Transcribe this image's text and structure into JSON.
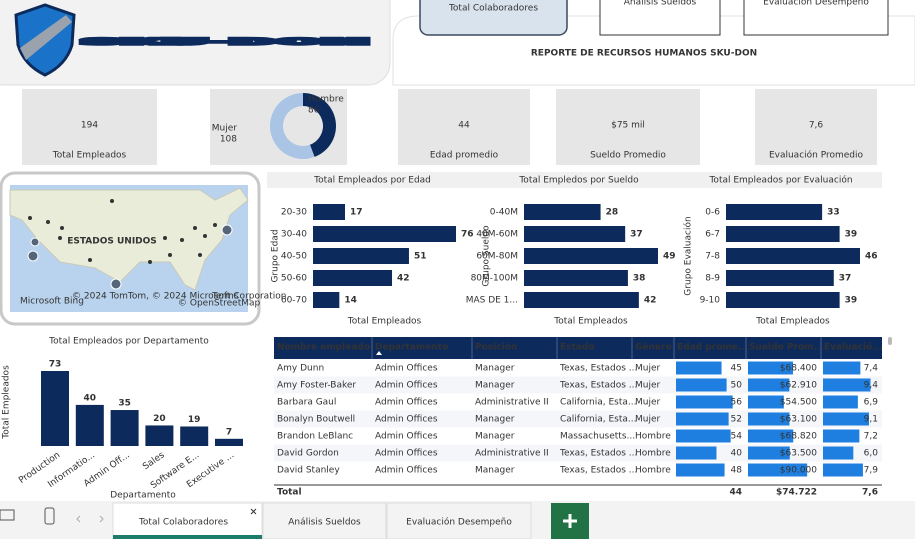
{
  "header": {
    "logo": "SKU-DON",
    "title": "REPORTE DE RECURSOS HUMANOS SKU-DON",
    "buttons": [
      "Total Colaboradores",
      "Análisis Sueldos",
      "Evaluación Desempeño"
    ]
  },
  "kpis": [
    {
      "value": 194,
      "label": "Total Empleados"
    },
    {
      "value": 44,
      "label": "Edad promedio"
    },
    {
      "value": "$75 mil",
      "label": "Sueldo Promedio"
    },
    {
      "value": "7,6",
      "label": "Evaluación Promedio"
    }
  ],
  "map": {
    "label": "ESTADOS UNIDOS",
    "attribution": "© 2024 TomTom, © 2024 Microsoft Corporation,",
    "terms": "Terms",
    "osm": "© OpenStreetMap",
    "brand": "Microsoft Bing"
  },
  "chart_data": [
    {
      "type": "donut",
      "categories": [
        "Hombre",
        "Mujer"
      ],
      "values": [
        86,
        108
      ],
      "colors": [
        "#0d2a5c",
        "#a9c4e4"
      ]
    },
    {
      "type": "hbar",
      "title": "Total Empleados por Edad",
      "categories": [
        "20-30",
        "30-40",
        "40-50",
        "50-60",
        "60-70"
      ],
      "values": [
        17,
        76,
        51,
        42,
        14
      ],
      "y_label": "Grupo Edad",
      "x_label": "Total Empleados",
      "color": "#0d2a5c"
    },
    {
      "type": "hbar",
      "title": "Total Empledos por Sueldo",
      "categories": [
        "0-40M",
        "40M-60M",
        "60M-80M",
        "80M-100M",
        "MAS DE 1..."
      ],
      "values": [
        28,
        37,
        49,
        38,
        42
      ],
      "y_label": "Grupo Sueldo",
      "x_label": "Total Empleados",
      "color": "#0d2a5c"
    },
    {
      "type": "hbar",
      "title": "Total Empleados por Evaluación",
      "categories": [
        "0-6",
        "6-7",
        "7-8",
        "8-9",
        "9-10"
      ],
      "values": [
        33,
        39,
        46,
        37,
        39
      ],
      "y_label": "Grupo Evaluación",
      "x_label": "Total Empleados",
      "color": "#0d2a5c"
    },
    {
      "type": "bar",
      "title": "Total Empleados por Departamento",
      "categories": [
        "Production",
        "Informatio...",
        "Admin Off...",
        "Sales",
        "Software E...",
        "Executive ..."
      ],
      "values": [
        73,
        40,
        35,
        20,
        19,
        7
      ],
      "y_label": "Total Empleados",
      "x_label": "Departamento",
      "color": "#0d2a5c"
    }
  ],
  "table": {
    "columns": [
      "Nombre empleado",
      "Departamento",
      "Posición",
      "Estado",
      "Género",
      "Edad prome...",
      "Sueldo Prom...",
      "Evaluació..."
    ],
    "rows": [
      [
        "Amy Dunn",
        "Admin Offices",
        "Manager",
        "Texas, Estados ...",
        "Mujer",
        45,
        {
          "value": 68400,
          "label": "$68.400"
        },
        {
          "value": 7.4,
          "label": "7,4"
        }
      ],
      [
        "Amy Foster-Baker",
        "Admin Offices",
        "Manager",
        "Texas, Estados ...",
        "Mujer",
        50,
        {
          "value": 62910,
          "label": "$62.910"
        },
        {
          "value": 9.4,
          "label": "9,4"
        }
      ],
      [
        "Barbara Gaul",
        "Admin Offices",
        "Administrative II",
        "California, Esta...",
        "Mujer",
        56,
        {
          "value": 54500,
          "label": "$54.500"
        },
        {
          "value": 6.9,
          "label": "6,9"
        }
      ],
      [
        "Bonalyn Boutwell",
        "Admin Offices",
        "Manager",
        "California, Esta...",
        "Mujer",
        52,
        {
          "value": 63100,
          "label": "$63.100"
        },
        {
          "value": 9.1,
          "label": "9,1"
        }
      ],
      [
        "Brandon LeBlanc",
        "Admin Offices",
        "Manager",
        "Massachusetts...",
        "Hombre",
        54,
        {
          "value": 68820,
          "label": "$68.820"
        },
        {
          "value": 7.2,
          "label": "7,2"
        }
      ],
      [
        "David Gordon",
        "Admin Offices",
        "Administrative II",
        "Texas, Estados ...",
        "Hombre",
        40,
        {
          "value": 63500,
          "label": "$63.500"
        },
        {
          "value": 6.0,
          "label": "6,0"
        }
      ],
      [
        "David Stanley",
        "Admin Offices",
        "Manager",
        "Texas, Estados ...",
        "Hombre",
        48,
        {
          "value": 90000,
          "label": "$90.000"
        },
        {
          "value": 7.9,
          "label": "7,9"
        }
      ]
    ],
    "total": {
      "label": "Total",
      "values": [
        44,
        {
          "value": 74722,
          "label": "$74.722"
        },
        {
          "value": 7.6,
          "label": "7,6"
        }
      ]
    }
  },
  "tabs": [
    "Total Colaboradores",
    "Análisis Sueldos",
    "Evaluación Desempeño"
  ]
}
